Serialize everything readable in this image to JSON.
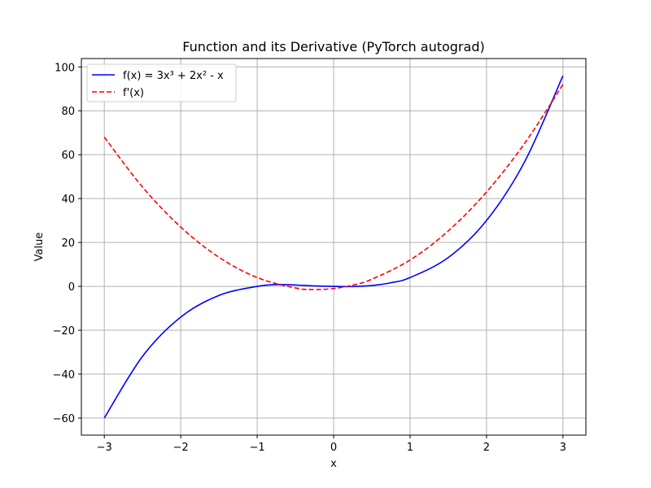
{
  "chart_data": {
    "type": "line",
    "title": "Function and its Derivative (PyTorch autograd)",
    "xlabel": "x",
    "ylabel": "Value",
    "xlim": [
      -3.3,
      3.3
    ],
    "ylim": [
      -67.8,
      103.8
    ],
    "xticks": [
      -3,
      -2,
      -1,
      0,
      1,
      2,
      3
    ],
    "yticks": [
      -60,
      -40,
      -20,
      0,
      20,
      40,
      60,
      80,
      100
    ],
    "xtick_labels": [
      "−3",
      "−2",
      "−1",
      "0",
      "1",
      "2",
      "3"
    ],
    "ytick_labels": [
      "−60",
      "−40",
      "−20",
      "0",
      "20",
      "40",
      "60",
      "80",
      "100"
    ],
    "grid": true,
    "legend_position": "upper-left",
    "series": [
      {
        "name": "f(x) = 3x³ + 2x² - x",
        "color": "#0000ff",
        "style": "solid",
        "x": [
          -3,
          -2.5,
          -2,
          -1.5,
          -1,
          -0.75,
          -0.5,
          -0.25,
          0,
          0.25,
          0.5,
          0.75,
          1,
          1.5,
          2,
          2.5,
          3
        ],
        "y": [
          -60,
          -31.88,
          -14,
          -4.13,
          0,
          0.8,
          0.63,
          0.2,
          0,
          -0.08,
          0.38,
          1.64,
          4,
          13.13,
          30,
          56.88,
          96
        ]
      },
      {
        "name": "f'(x)",
        "color": "#ff0000",
        "style": "dashed",
        "x": [
          -3,
          -2.5,
          -2,
          -1.5,
          -1,
          -0.5,
          -0.25,
          0,
          0.25,
          0.5,
          1,
          1.5,
          2,
          2.5,
          3
        ],
        "y": [
          68,
          45.25,
          27,
          13.25,
          4,
          -0.75,
          -1.44,
          -1,
          0.56,
          3.25,
          12,
          25.25,
          43,
          65.25,
          92
        ]
      }
    ]
  }
}
